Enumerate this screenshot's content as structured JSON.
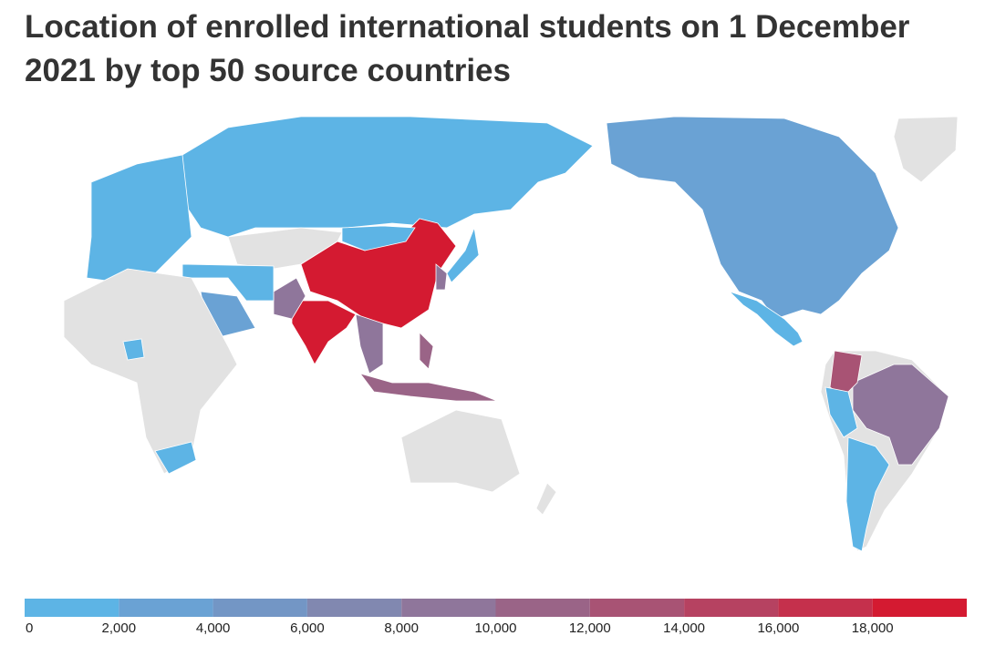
{
  "title": "Location of enrolled international students on 1 December 2021 by top 50 source countries",
  "legend": {
    "range": [
      0,
      20000
    ],
    "ticks": [
      0,
      {
        "value": 2000,
        "label": "2,000"
      },
      {
        "value": 4000,
        "label": "4,000"
      },
      {
        "value": 6000,
        "label": "6,000"
      },
      {
        "value": 8000,
        "label": "8,000"
      },
      {
        "value": 10000,
        "label": "10,000"
      },
      {
        "value": 12000,
        "label": "12,000"
      },
      {
        "value": 14000,
        "label": "14,000"
      },
      {
        "value": 16000,
        "label": "16,000"
      },
      {
        "value": 18000,
        "label": "18,000"
      }
    ],
    "colors": [
      "#5db4e5",
      "#6aa2d4",
      "#7396c5",
      "#8188b0",
      "#8f769b",
      "#9a6487",
      "#a85374",
      "#b64261",
      "#c5304c",
      "#d41a31"
    ]
  }
}
